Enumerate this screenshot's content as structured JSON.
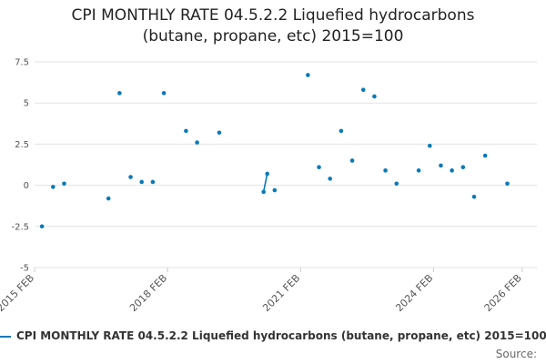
{
  "title_lines": [
    "CPI MONTHLY RATE 04.5.2.2 Liquefied hydrocarbons",
    "(butane, propane, etc) 2015=100"
  ],
  "legend_label": "CPI MONTHLY RATE 04.5.2.2 Liquefied hydrocarbons (butane, propane, etc) 2015=100",
  "source_label": "Source:",
  "series_color": "#0a7ab7",
  "chart_data": {
    "type": "scatter",
    "title": "CPI MONTHLY RATE 04.5.2.2 Liquefied hydrocarbons (butane, propane, etc) 2015=100",
    "xlabel": "",
    "ylabel": "",
    "ylim": [
      -5,
      7.5
    ],
    "y_ticks": [
      -5,
      -2.5,
      0,
      2.5,
      5,
      7.5
    ],
    "y_tick_labels": [
      "-5",
      "-2.5",
      "0",
      "2.5",
      "5",
      "7.5"
    ],
    "x_range": [
      2015.083,
      2026.417
    ],
    "x_ticks": [
      2015.083,
      2018.083,
      2021.083,
      2024.083,
      2026.083
    ],
    "x_tick_labels": [
      "2015 FEB",
      "2018 FEB",
      "2021 FEB",
      "2024 FEB",
      "2026 FEB"
    ],
    "grid": "horizontal",
    "legend": "bottom",
    "series": [
      {
        "name": "CPI MONTHLY RATE 04.5.2.2 Liquefied hydrocarbons (butane, propane, etc) 2015=100",
        "points": [
          {
            "x": 2015.25,
            "y": -2.5
          },
          {
            "x": 2015.5,
            "y": -0.1
          },
          {
            "x": 2015.75,
            "y": 0.1
          },
          {
            "x": 2016.75,
            "y": -0.8
          },
          {
            "x": 2017.0,
            "y": 5.6
          },
          {
            "x": 2017.25,
            "y": 0.5
          },
          {
            "x": 2017.5,
            "y": 0.2
          },
          {
            "x": 2017.75,
            "y": 0.2
          },
          {
            "x": 2018.0,
            "y": 5.6
          },
          {
            "x": 2018.5,
            "y": 3.3
          },
          {
            "x": 2018.75,
            "y": 2.6
          },
          {
            "x": 2019.25,
            "y": 3.2
          },
          {
            "x": 2020.25,
            "y": -0.4
          },
          {
            "x": 2020.333,
            "y": 0.7
          },
          {
            "x": 2020.5,
            "y": -0.3
          },
          {
            "x": 2021.25,
            "y": 6.7
          },
          {
            "x": 2021.5,
            "y": 1.1
          },
          {
            "x": 2021.75,
            "y": 0.4
          },
          {
            "x": 2022.0,
            "y": 3.3
          },
          {
            "x": 2022.25,
            "y": 1.5
          },
          {
            "x": 2022.5,
            "y": 5.8
          },
          {
            "x": 2022.75,
            "y": 5.4
          },
          {
            "x": 2023.0,
            "y": 0.9
          },
          {
            "x": 2023.25,
            "y": 0.1
          },
          {
            "x": 2023.75,
            "y": 0.9
          },
          {
            "x": 2024.0,
            "y": 2.4
          },
          {
            "x": 2024.25,
            "y": 1.2
          },
          {
            "x": 2024.5,
            "y": 0.9
          },
          {
            "x": 2024.75,
            "y": 1.1
          },
          {
            "x": 2025.0,
            "y": -0.7
          },
          {
            "x": 2025.25,
            "y": 1.8
          },
          {
            "x": 2025.75,
            "y": 0.1
          }
        ],
        "connected_segments": [
          [
            2020.25,
            2020.333
          ]
        ]
      }
    ]
  }
}
